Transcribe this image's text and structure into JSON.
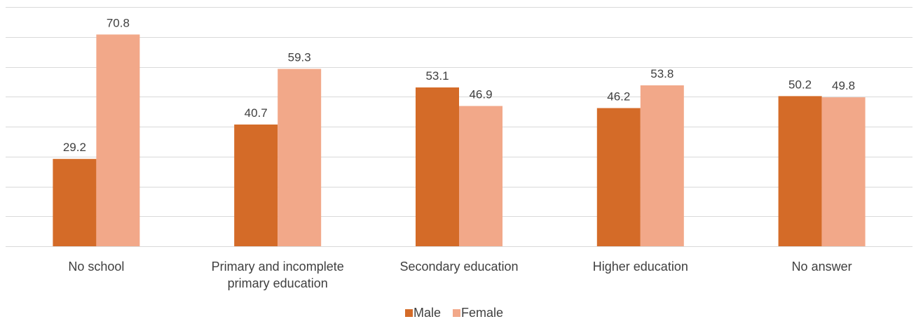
{
  "chart_data": {
    "type": "bar",
    "title": "",
    "xlabel": "",
    "ylabel": "",
    "ylim": [
      0,
      80
    ],
    "grid": true,
    "legend_position": "bottom",
    "categories": [
      [
        "No school"
      ],
      [
        "Primary and incomplete",
        "primary education"
      ],
      [
        "Secondary education"
      ],
      [
        "Higher education"
      ],
      [
        "No answer"
      ]
    ],
    "series": [
      {
        "name": "Male",
        "color": "#D46B28",
        "values": [
          29.2,
          40.7,
          53.1,
          46.2,
          50.2
        ]
      },
      {
        "name": "Female",
        "color": "#F2A889",
        "values": [
          70.8,
          59.3,
          46.9,
          53.8,
          49.8
        ]
      }
    ],
    "value_labels": [
      [
        "29.2",
        "40.7",
        "53.1",
        "46.2",
        "50.2"
      ],
      [
        "70.8",
        "59.3",
        "46.9",
        "53.8",
        "49.8"
      ]
    ],
    "legend": [
      "Male",
      "Female"
    ]
  }
}
